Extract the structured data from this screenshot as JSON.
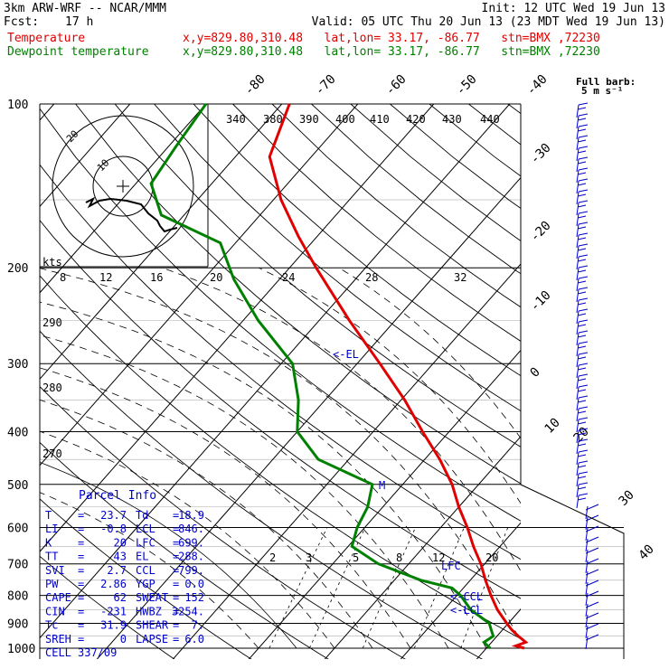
{
  "header": {
    "model": "3km ARW-WRF -- NCAR/MMM",
    "init": "Init: 12 UTC Wed 19 Jun 13",
    "fcst_label": "Fcst:",
    "fcst_value": "17 h",
    "valid": "Valid: 05 UTC Thu 20 Jun 13 (23 MDT Wed 19 Jun 13)",
    "temp_label": "Temperature",
    "temp_loc": "x,y=829.80,310.48   lat,lon= 33.17, -86.77   stn=BMX ,72230",
    "dew_label": "Dewpoint temperature",
    "dew_loc": "x,y=829.80,310.48   lat,lon= 33.17, -86.77   stn=BMX ,72230"
  },
  "colors": {
    "temperature": "#e00000",
    "dewpoint": "#008000",
    "grid": "#000000",
    "parcel": "#0000cc",
    "barbs": "#0000cc"
  },
  "parcel": {
    "title": "Parcel Info",
    "rows": [
      {
        "k1": "T",
        "v1": "23.7",
        "k2": "Td",
        "v2": "18.9"
      },
      {
        "k1": "LI",
        "v1": "-0.8",
        "k2": "LCL",
        "v2": "846."
      },
      {
        "k1": "K",
        "v1": "20",
        "k2": "LFC",
        "v2": "699."
      },
      {
        "k1": "TT",
        "v1": "43",
        "k2": "EL",
        "v2": "288."
      },
      {
        "k1": "SVI",
        "v1": "2.7",
        "k2": "CCL",
        "v2": "799."
      },
      {
        "k1": "PW",
        "v1": "2.86",
        "k2": "YGP",
        "v2": "0.0"
      },
      {
        "k1": "CAPE",
        "v1": "62",
        "k2": "SWEAT",
        "v2": "152"
      },
      {
        "k1": "CIN",
        "v1": "-231",
        "k2": "HWBZ",
        "v2": "3254."
      },
      {
        "k1": "Tc",
        "v1": "31.9",
        "k2": "SHEAR",
        "v2": "7."
      },
      {
        "k1": "SREH",
        "v1": "0",
        "k2": "LAPSE",
        "v2": "6.0"
      },
      {
        "k1": "CELL",
        "v1": "337/09",
        "k2": "",
        "v2": ""
      }
    ]
  },
  "chart_data": {
    "type": "line",
    "title": "",
    "y_axis": "pressure (hPa), log scale",
    "pressure_ticks": [
      100,
      200,
      300,
      400,
      500,
      600,
      700,
      800,
      900,
      1000
    ],
    "temperature_ticks": [
      -40,
      -30,
      -20,
      -10,
      0,
      10,
      20,
      30,
      40
    ],
    "top_temperature_labels": [
      "-80",
      "-70",
      "-60",
      "-50",
      "-40"
    ],
    "theta_labels": [
      "340",
      "380",
      "390",
      "400",
      "410",
      "420",
      "430",
      "440"
    ],
    "theta_e_labels": [
      "290",
      "280",
      "270"
    ],
    "mixing_ratio_labels": [
      "2",
      "3",
      "5",
      "8",
      "12",
      "20"
    ],
    "hodograph": {
      "unit": "kts",
      "ring_labels": [
        "8",
        "12",
        "16",
        "20",
        "24",
        "28",
        "32"
      ],
      "inner_labels": [
        "10",
        "20"
      ]
    },
    "level_markers": [
      "<-EL",
      "M",
      "LFC",
      "<-CCL",
      "<-LCL"
    ],
    "barb_legend": {
      "title": "Full barb:",
      "value": "5 m s⁻¹"
    },
    "series": [
      {
        "name": "Temperature",
        "color": "#e00000",
        "points": [
          [
            1000,
            25.0
          ],
          [
            990,
            23.6
          ],
          [
            975,
            24.5
          ],
          [
            950,
            22.8
          ],
          [
            925,
            21.2
          ],
          [
            900,
            19.8
          ],
          [
            850,
            17.0
          ],
          [
            800,
            14.5
          ],
          [
            750,
            12.0
          ],
          [
            700,
            9.5
          ],
          [
            650,
            6.5
          ],
          [
            600,
            3.5
          ],
          [
            550,
            0.0
          ],
          [
            500,
            -3.5
          ],
          [
            450,
            -8.0
          ],
          [
            400,
            -13.5
          ],
          [
            350,
            -19.5
          ],
          [
            300,
            -27.0
          ],
          [
            250,
            -36.0
          ],
          [
            200,
            -46.5
          ],
          [
            175,
            -52.5
          ],
          [
            150,
            -59.0
          ],
          [
            125,
            -65.5
          ],
          [
            100,
            -69.0
          ]
        ]
      },
      {
        "name": "Dewpoint temperature",
        "color": "#008000",
        "points": [
          [
            1000,
            20.5
          ],
          [
            975,
            19.0
          ],
          [
            950,
            19.5
          ],
          [
            925,
            18.5
          ],
          [
            900,
            17.5
          ],
          [
            850,
            13.5
          ],
          [
            800,
            10.5
          ],
          [
            775,
            8.5
          ],
          [
            750,
            3.5
          ],
          [
            700,
            -4.0
          ],
          [
            650,
            -9.5
          ],
          [
            600,
            -11.0
          ],
          [
            550,
            -12.0
          ],
          [
            500,
            -14.0
          ],
          [
            450,
            -24.0
          ],
          [
            400,
            -30.0
          ],
          [
            350,
            -33.5
          ],
          [
            300,
            -38.5
          ],
          [
            250,
            -48.0
          ],
          [
            210,
            -56.0
          ],
          [
            180,
            -62.0
          ],
          [
            160,
            -73.0
          ],
          [
            140,
            -78.0
          ],
          [
            120,
            -79.0
          ],
          [
            100,
            -80.0
          ]
        ]
      }
    ]
  }
}
